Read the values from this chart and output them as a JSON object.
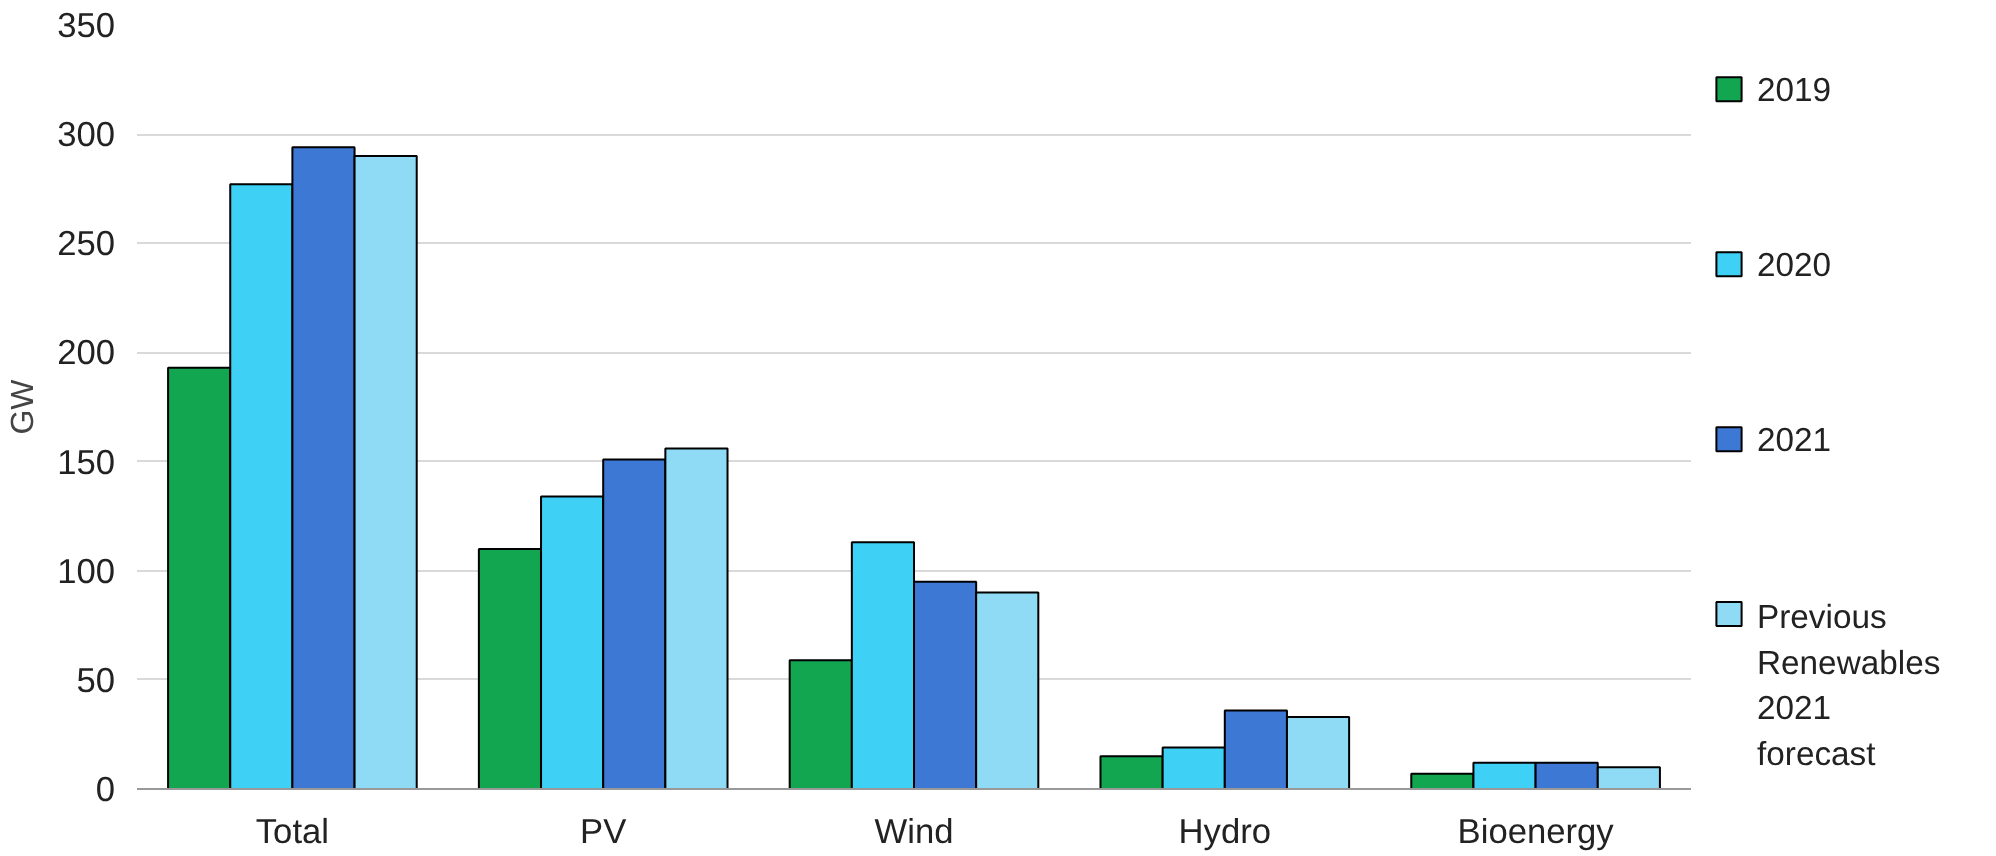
{
  "chart_data": {
    "type": "bar",
    "ylabel": "GW",
    "categories": [
      "Total",
      "PV",
      "Wind",
      "Hydro",
      "Bioenergy"
    ],
    "series": [
      {
        "name": "2019",
        "color": "#12a650",
        "values": [
          193,
          110,
          59,
          15,
          7
        ]
      },
      {
        "name": "2020",
        "color": "#3fd0f5",
        "values": [
          277,
          134,
          113,
          19,
          12
        ]
      },
      {
        "name": "2021",
        "color": "#3c78d4",
        "values": [
          294,
          151,
          95,
          36,
          12
        ]
      },
      {
        "name": "Previous Renewables 2021 forecast",
        "color": "#8fdaf5",
        "values": [
          290,
          156,
          90,
          33,
          10
        ]
      }
    ],
    "ylim": [
      0,
      350
    ],
    "yticks": [
      0,
      50,
      100,
      150,
      200,
      250,
      300,
      350
    ],
    "grid": "y",
    "legend": "right"
  }
}
